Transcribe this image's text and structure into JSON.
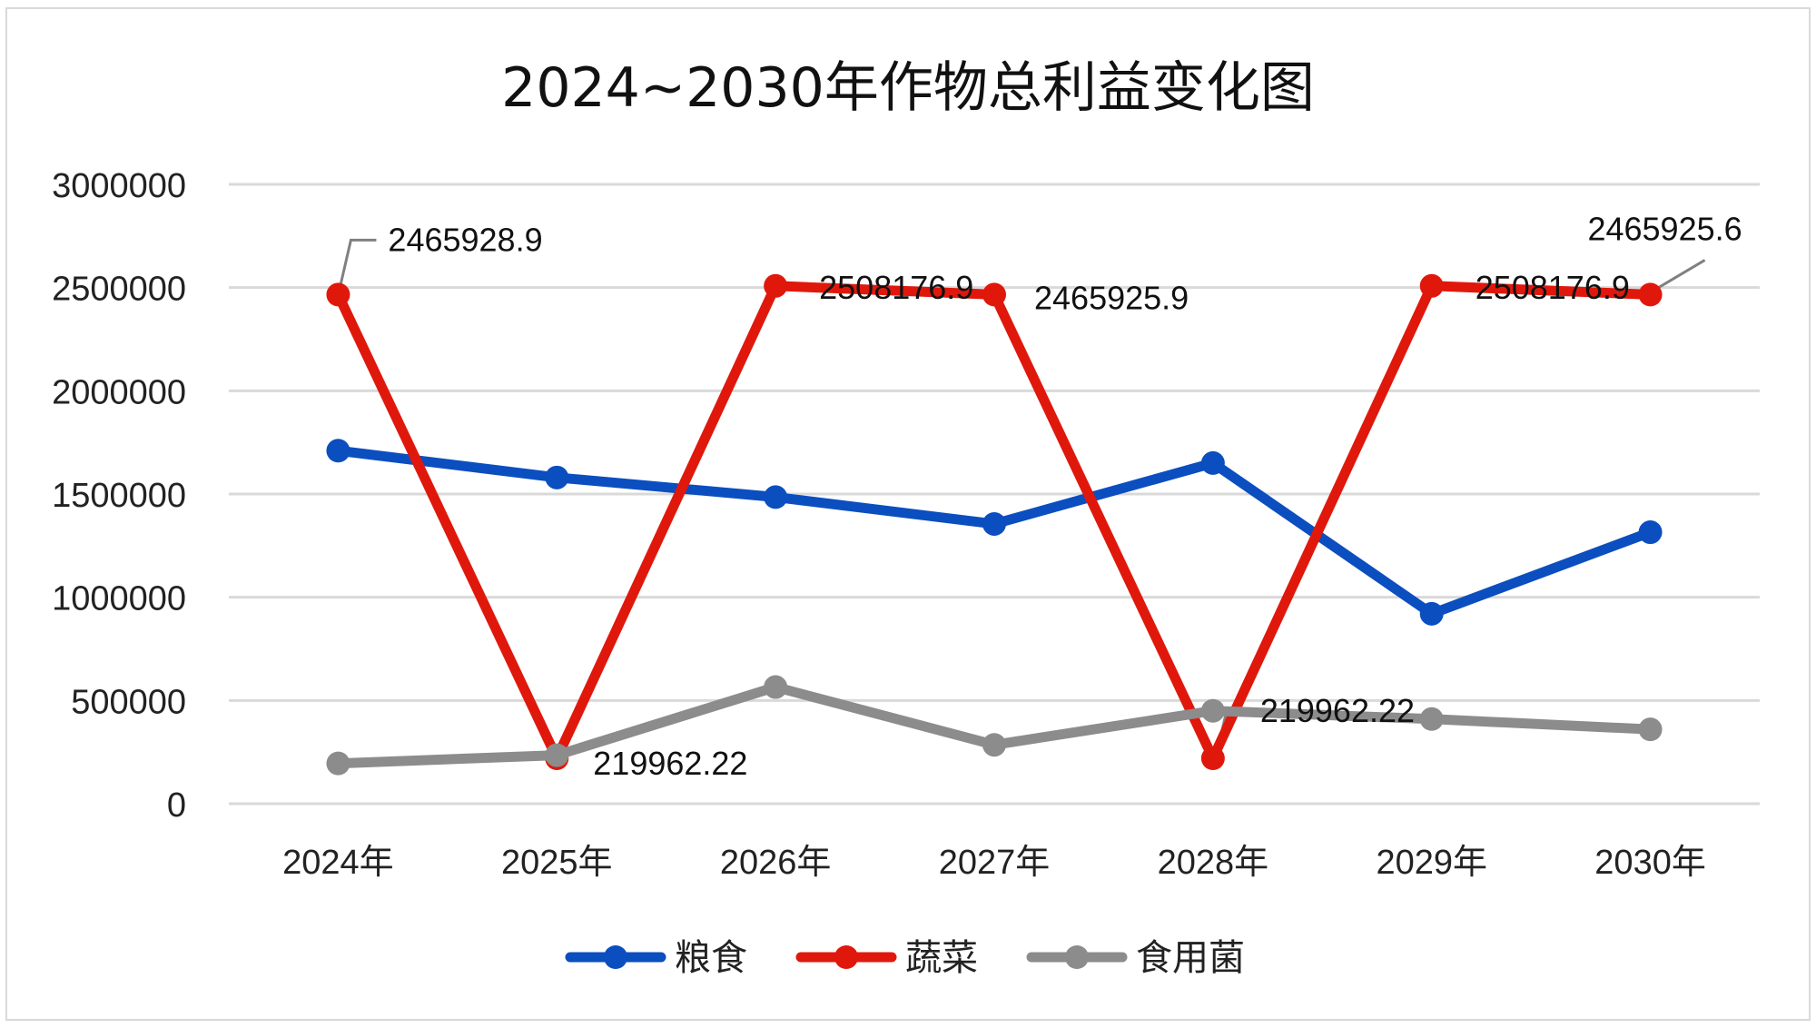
{
  "chart_data": {
    "type": "line",
    "title": "2024~2030年作物总利益变化图",
    "xlabel": "",
    "ylabel": "",
    "categories": [
      "2024年",
      "2025年",
      "2026年",
      "2027年",
      "2028年",
      "2029年",
      "2030年"
    ],
    "ylim": [
      0,
      3000000
    ],
    "yticks": [
      0,
      500000,
      1000000,
      1500000,
      2000000,
      2500000,
      3000000
    ],
    "grid": true,
    "legend_position": "bottom",
    "series": [
      {
        "name": "粮食",
        "color": "#0b4ebf",
        "values": [
          1710000,
          1580000,
          1485000,
          1355000,
          1650000,
          920000,
          1315000
        ]
      },
      {
        "name": "蔬菜",
        "color": "#e0180c",
        "values": [
          2465928.9,
          219962.22,
          2508176.9,
          2465925.9,
          219962.22,
          2508176.9,
          2465925.6
        ]
      },
      {
        "name": "食用菌",
        "color": "#8c8c8c",
        "values": [
          195000,
          235000,
          565000,
          285000,
          450000,
          410000,
          360000
        ]
      }
    ],
    "annotations": [
      {
        "series": 1,
        "index": 0,
        "text": "2465928.9"
      },
      {
        "series": 1,
        "index": 1,
        "text": "219962.22"
      },
      {
        "series": 1,
        "index": 2,
        "text": "2508176.9"
      },
      {
        "series": 1,
        "index": 3,
        "text": "2465925.9"
      },
      {
        "series": 1,
        "index": 4,
        "text": "219962.22"
      },
      {
        "series": 1,
        "index": 5,
        "text": "2508176.9"
      },
      {
        "series": 1,
        "index": 6,
        "text": "2465925.6"
      }
    ]
  }
}
